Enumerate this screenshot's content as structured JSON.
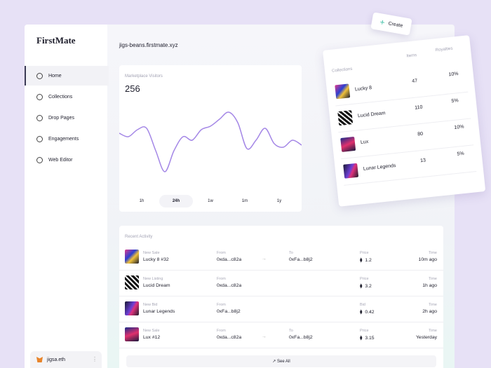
{
  "sidebar": {
    "brand": "FirstMate",
    "nav": [
      "Home",
      "Collections",
      "Drop Pages",
      "Engagements",
      "Web Editor"
    ],
    "user": "jigsa.eth"
  },
  "header": {
    "site": "jigs-beans.firstmate.xyz"
  },
  "create_button": "Create",
  "visitors": {
    "title": "Marketplace Visitors",
    "total": 256,
    "line": [
      60,
      55,
      65,
      67,
      35,
      5,
      35,
      55,
      50,
      65,
      70,
      80,
      90,
      75,
      38,
      50,
      67,
      45,
      40,
      50,
      43
    ],
    "ranges": [
      "1h",
      "24h",
      "1w",
      "1m",
      "1y"
    ]
  },
  "collections": {
    "headers": [
      "Collections",
      "Items",
      "Royalties"
    ],
    "rows": [
      {
        "name": "Lucky 8",
        "items": 47,
        "royalties": "10%"
      },
      {
        "name": "Lucid Dream",
        "items": 110,
        "royalties": "5%"
      },
      {
        "name": "Lux",
        "items": 80,
        "royalties": "10%"
      },
      {
        "name": "Lunar Legends",
        "items": 13,
        "royalties": "5%"
      }
    ]
  },
  "activity": {
    "title": "Recent Activity",
    "rows": [
      {
        "type": "New Sale",
        "item": "Lucky 8 #32",
        "from_label": "From",
        "from": "0xda...c82a",
        "to_label": "To",
        "to": "0xFa...b8j2",
        "price_label": "Price",
        "price": "1.2",
        "time_label": "Time",
        "time": "10m ago"
      },
      {
        "type": "New Listing",
        "item": "Lucid Dream",
        "from_label": "From",
        "from": "0xda...c82a",
        "price_label": "Price",
        "price": "3.2",
        "time_label": "Time",
        "time": "1h ago"
      },
      {
        "type": "New Bid",
        "item": "Lunar Legends",
        "from_label": "From",
        "from": "0xFa...b8j2",
        "price_label": "Bid",
        "price": "0.42",
        "time_label": "Time",
        "time": "2h ago"
      },
      {
        "type": "New Sale",
        "item": "Lux #12",
        "from_label": "From",
        "from": "0xda...c82a",
        "to_label": "To",
        "to": "0xFa...b8j2",
        "price_label": "Price",
        "price": "3.15",
        "time_label": "Time",
        "time": "Yesterday"
      }
    ],
    "see_all": "See All"
  }
}
